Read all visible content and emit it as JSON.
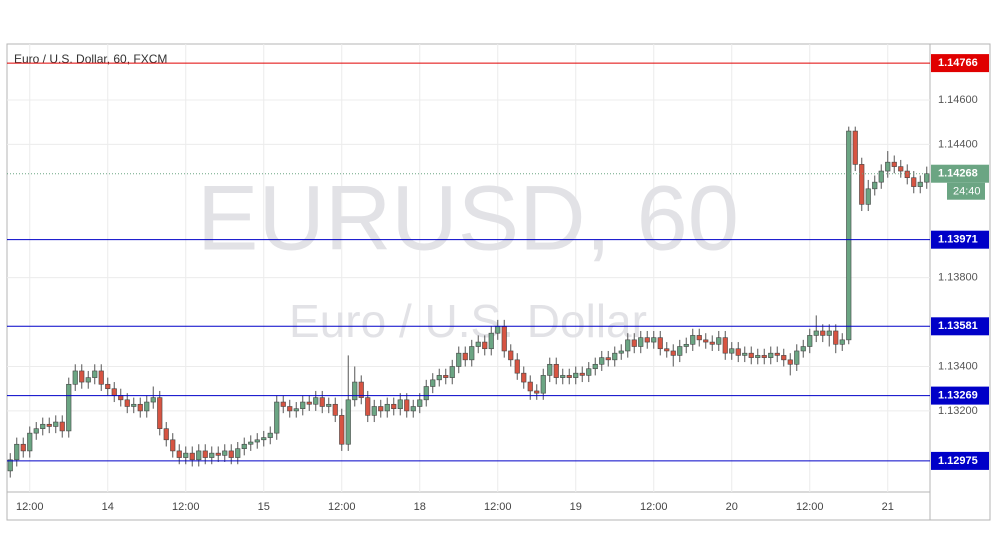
{
  "chart_data": {
    "type": "candlestick",
    "title": "Euro / U.S. Dollar, 60, FXCM",
    "watermark": "EURUSD, 60",
    "watermark_subtitle": "Euro / U.S. Dollar",
    "up_color": "#6ba583",
    "down_color": "#d75442",
    "categories": [
      null,
      null,
      null,
      "12:00",
      null,
      null,
      null,
      null,
      null,
      null,
      null,
      null,
      null,
      null,
      null,
      "14",
      null,
      null,
      null,
      null,
      null,
      null,
      null,
      null,
      null,
      null,
      null,
      "12:00",
      null,
      null,
      null,
      null,
      null,
      null,
      null,
      null,
      null,
      null,
      null,
      "15",
      null,
      null,
      null,
      null,
      null,
      null,
      null,
      null,
      null,
      null,
      null,
      "12:00",
      null,
      null,
      null,
      null,
      null,
      null,
      null,
      null,
      null,
      null,
      null,
      "18",
      null,
      null,
      null,
      null,
      null,
      null,
      null,
      null,
      null,
      null,
      null,
      "12:00",
      null,
      null,
      null,
      null,
      null,
      null,
      null,
      null,
      null,
      null,
      null,
      "19",
      null,
      null,
      null,
      null,
      null,
      null,
      null,
      null,
      null,
      null,
      null,
      "12:00",
      null,
      null,
      null,
      null,
      null,
      null,
      null,
      null,
      null,
      null,
      null,
      "20",
      null,
      null,
      null,
      null,
      null,
      null,
      null,
      null,
      null,
      null,
      null,
      "12:00",
      null,
      null,
      null,
      null,
      null,
      null,
      null,
      null,
      null,
      null,
      null,
      "21",
      null,
      null,
      null,
      null,
      null,
      null
    ],
    "open": [
      1.1293,
      1.1298,
      1.1305,
      1.1302,
      1.131,
      1.1312,
      1.1314,
      1.1313,
      1.1315,
      1.1311,
      1.1332,
      1.1338,
      1.1333,
      1.1335,
      1.1338,
      1.1332,
      1.133,
      1.1327,
      1.1325,
      1.1322,
      1.1323,
      1.132,
      1.1324,
      1.1326,
      1.1312,
      1.1307,
      1.1302,
      1.1299,
      1.1301,
      1.1298,
      1.1302,
      1.1299,
      1.1301,
      1.13,
      1.1302,
      1.1299,
      1.1303,
      1.1305,
      1.1306,
      1.1307,
      1.1308,
      1.131,
      1.1324,
      1.1322,
      1.132,
      1.1321,
      1.1324,
      1.1323,
      1.1326,
      1.1322,
      1.1323,
      1.1318,
      1.1305,
      1.1325,
      1.1333,
      1.1326,
      1.1318,
      1.1322,
      1.132,
      1.1323,
      1.1321,
      1.1325,
      1.132,
      1.1322,
      1.1325,
      1.1331,
      1.1334,
      1.1336,
      1.1335,
      1.134,
      1.1346,
      1.1343,
      1.1349,
      1.1351,
      1.1348,
      1.1355,
      1.1358,
      1.1347,
      1.1343,
      1.1337,
      1.1333,
      1.1329,
      1.1328,
      1.1336,
      1.1341,
      1.1335,
      1.1336,
      1.1335,
      1.1337,
      1.1336,
      1.1339,
      1.1341,
      1.1344,
      1.1343,
      1.1346,
      1.1347,
      1.1352,
      1.1349,
      1.1353,
      1.1351,
      1.1353,
      1.1348,
      1.1347,
      1.1345,
      1.1349,
      1.135,
      1.1354,
      1.1352,
      1.1351,
      1.135,
      1.1353,
      1.1346,
      1.1348,
      1.1345,
      1.1346,
      1.1344,
      1.1345,
      1.1344,
      1.1346,
      1.1345,
      1.1343,
      1.1341,
      1.1347,
      1.1349,
      1.1354,
      1.1356,
      1.1354,
      1.1356,
      1.135,
      1.1352,
      1.1446,
      1.1431,
      1.1413,
      1.142,
      1.1423,
      1.1428,
      1.1432,
      1.143,
      1.1428,
      1.1425,
      1.1421,
      1.1423
    ],
    "high": [
      1.1301,
      1.1308,
      1.1308,
      1.1313,
      1.1315,
      1.1317,
      1.1317,
      1.1318,
      1.1318,
      1.1335,
      1.1341,
      1.1341,
      1.1338,
      1.1341,
      1.1341,
      1.1335,
      1.1333,
      1.133,
      1.1328,
      1.1326,
      1.1326,
      1.1327,
      1.1331,
      1.1329,
      1.1315,
      1.131,
      1.1305,
      1.1304,
      1.1304,
      1.1305,
      1.1305,
      1.1304,
      1.1304,
      1.1305,
      1.1305,
      1.1306,
      1.1308,
      1.1309,
      1.131,
      1.1311,
      1.1313,
      1.1327,
      1.1327,
      1.1325,
      1.1324,
      1.1327,
      1.1327,
      1.1329,
      1.1329,
      1.1326,
      1.1326,
      1.1321,
      1.1345,
      1.134,
      1.1336,
      1.1329,
      1.1325,
      1.1325,
      1.1326,
      1.1326,
      1.1328,
      1.1328,
      1.1325,
      1.1328,
      1.1334,
      1.1337,
      1.1339,
      1.1339,
      1.1343,
      1.1349,
      1.1349,
      1.1352,
      1.1354,
      1.1354,
      1.1358,
      1.1361,
      1.1361,
      1.135,
      1.1346,
      1.134,
      1.1336,
      1.1332,
      1.1339,
      1.1344,
      1.1344,
      1.1339,
      1.1339,
      1.134,
      1.134,
      1.1342,
      1.1344,
      1.1347,
      1.1347,
      1.1349,
      1.135,
      1.1355,
      1.1355,
      1.1356,
      1.1356,
      1.1356,
      1.1356,
      1.1351,
      1.135,
      1.1352,
      1.1353,
      1.1357,
      1.1357,
      1.1355,
      1.1354,
      1.1356,
      1.1356,
      1.1351,
      1.1351,
      1.1349,
      1.1349,
      1.1348,
      1.1348,
      1.1349,
      1.1349,
      1.1348,
      1.1346,
      1.135,
      1.1352,
      1.1357,
      1.1363,
      1.1359,
      1.1359,
      1.1359,
      1.1355,
      1.1448,
      1.1448,
      1.1434,
      1.1424,
      1.1426,
      1.1431,
      1.1437,
      1.1435,
      1.1433,
      1.1431,
      1.1428,
      1.1426,
      1.143
    ],
    "low": [
      1.129,
      1.1295,
      1.1299,
      1.1299,
      1.1307,
      1.1309,
      1.131,
      1.131,
      1.1308,
      1.1308,
      1.1329,
      1.133,
      1.133,
      1.1332,
      1.1329,
      1.1327,
      1.1324,
      1.1322,
      1.1319,
      1.1319,
      1.1317,
      1.1317,
      1.1321,
      1.1309,
      1.1304,
      1.1299,
      1.1296,
      1.1296,
      1.1295,
      1.1295,
      1.1296,
      1.1296,
      1.1297,
      1.1297,
      1.1296,
      1.1296,
      1.13,
      1.1302,
      1.1303,
      1.1304,
      1.1305,
      1.1307,
      1.1319,
      1.1317,
      1.1317,
      1.1318,
      1.132,
      1.132,
      1.1319,
      1.1319,
      1.1315,
      1.1302,
      1.1302,
      1.1322,
      1.1323,
      1.1315,
      1.1315,
      1.1317,
      1.1317,
      1.1318,
      1.1318,
      1.1317,
      1.1317,
      1.1319,
      1.1322,
      1.1328,
      1.1331,
      1.1332,
      1.1332,
      1.1337,
      1.134,
      1.134,
      1.1346,
      1.1345,
      1.1345,
      1.1352,
      1.1344,
      1.134,
      1.1334,
      1.133,
      1.1325,
      1.1325,
      1.1325,
      1.1333,
      1.1332,
      1.1332,
      1.1332,
      1.1332,
      1.1333,
      1.1333,
      1.1336,
      1.1338,
      1.134,
      1.134,
      1.1343,
      1.1344,
      1.1346,
      1.1346,
      1.1348,
      1.1348,
      1.1345,
      1.1344,
      1.134,
      1.1342,
      1.1346,
      1.1347,
      1.1349,
      1.1348,
      1.1347,
      1.1347,
      1.1343,
      1.1343,
      1.1342,
      1.1342,
      1.1341,
      1.1341,
      1.1341,
      1.1341,
      1.1342,
      1.134,
      1.1336,
      1.1338,
      1.1344,
      1.1346,
      1.1351,
      1.1351,
      1.1349,
      1.1346,
      1.1347,
      1.135,
      1.1428,
      1.141,
      1.141,
      1.1417,
      1.142,
      1.1425,
      1.1427,
      1.1425,
      1.1422,
      1.1418,
      1.1418,
      1.142
    ],
    "close": [
      1.1298,
      1.1305,
      1.1302,
      1.131,
      1.1312,
      1.1314,
      1.1313,
      1.1315,
      1.1311,
      1.1332,
      1.1338,
      1.1333,
      1.1335,
      1.1338,
      1.1332,
      1.133,
      1.1327,
      1.1325,
      1.1322,
      1.1323,
      1.132,
      1.1324,
      1.1326,
      1.1312,
      1.1307,
      1.1302,
      1.1299,
      1.1301,
      1.1298,
      1.1302,
      1.1299,
      1.1301,
      1.13,
      1.1302,
      1.1299,
      1.1303,
      1.1305,
      1.1306,
      1.1307,
      1.1308,
      1.131,
      1.1324,
      1.1322,
      1.132,
      1.1321,
      1.1324,
      1.1323,
      1.1326,
      1.1322,
      1.1323,
      1.1318,
      1.1305,
      1.1325,
      1.1333,
      1.1326,
      1.1318,
      1.1322,
      1.132,
      1.1323,
      1.1321,
      1.1325,
      1.132,
      1.1322,
      1.1325,
      1.1331,
      1.1334,
      1.1336,
      1.1335,
      1.134,
      1.1346,
      1.1343,
      1.1349,
      1.1351,
      1.1348,
      1.1355,
      1.1358,
      1.1347,
      1.1343,
      1.1337,
      1.1333,
      1.1329,
      1.1328,
      1.1336,
      1.1341,
      1.1335,
      1.1336,
      1.1335,
      1.1337,
      1.1336,
      1.1339,
      1.1341,
      1.1344,
      1.1343,
      1.1346,
      1.1347,
      1.1352,
      1.1349,
      1.1353,
      1.1351,
      1.1353,
      1.1348,
      1.1347,
      1.1345,
      1.1349,
      1.135,
      1.1354,
      1.1352,
      1.1351,
      1.135,
      1.1353,
      1.1346,
      1.1348,
      1.1345,
      1.1346,
      1.1344,
      1.1345,
      1.1344,
      1.1346,
      1.1345,
      1.1343,
      1.1341,
      1.1347,
      1.1349,
      1.1354,
      1.1356,
      1.1354,
      1.1356,
      1.135,
      1.1352,
      1.1446,
      1.1431,
      1.1413,
      1.142,
      1.1423,
      1.1428,
      1.1432,
      1.143,
      1.1428,
      1.1425,
      1.1421,
      1.1423,
      1.14268
    ],
    "ylim": [
      1.12835,
      1.14852
    ],
    "yticks": [
      {
        "value": 1.132,
        "label": "1.13200"
      },
      {
        "value": 1.134,
        "label": "1.13400"
      },
      {
        "value": 1.138,
        "label": "1.13800"
      },
      {
        "value": 1.144,
        "label": "1.14400"
      },
      {
        "value": 1.146,
        "label": "1.14600"
      }
    ],
    "grid": true,
    "levels": [
      {
        "value": 1.14766,
        "label": "1.14766",
        "color": "#e00000"
      },
      {
        "value": 1.13971,
        "label": "1.13971",
        "color": "#0000c8"
      },
      {
        "value": 1.13581,
        "label": "1.13581",
        "color": "#0000c8"
      },
      {
        "value": 1.13269,
        "label": "1.13269",
        "color": "#0000c8"
      },
      {
        "value": 1.12975,
        "label": "1.12975",
        "color": "#0000c8"
      }
    ],
    "last_price": {
      "value": 1.14268,
      "label": "1.14268",
      "countdown": "24:40",
      "color": "#6ba583"
    }
  }
}
